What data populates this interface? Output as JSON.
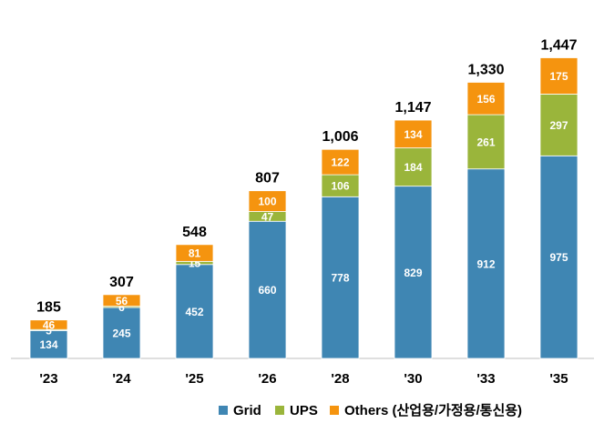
{
  "chart_data": {
    "type": "bar",
    "stacked": true,
    "categories": [
      "'23",
      "'24",
      "'25",
      "'26",
      "'28",
      "'30",
      "'33",
      "'35"
    ],
    "series": [
      {
        "name": "Grid",
        "color": "#3f86b3",
        "values": [
          134,
          245,
          452,
          660,
          778,
          829,
          912,
          975
        ]
      },
      {
        "name": "UPS",
        "color": "#9ab53b",
        "values": [
          5,
          6,
          15,
          47,
          106,
          184,
          261,
          297
        ]
      },
      {
        "name": "Others (산업용/가정용/통신용)",
        "color": "#f5940f",
        "values": [
          46,
          56,
          81,
          100,
          122,
          134,
          156,
          175
        ]
      }
    ],
    "totals": [
      "185",
      "307",
      "548",
      "807",
      "1,006",
      "1,147",
      "1,330",
      "1,447"
    ],
    "ylim": [
      0,
      1600
    ],
    "grid": false,
    "legend": "bottom-right"
  }
}
